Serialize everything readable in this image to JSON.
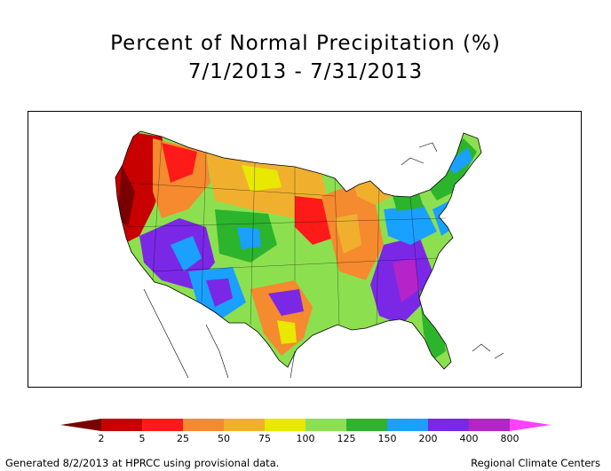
{
  "title": "Percent of Normal Precipitation (%)",
  "period": "7/1/2013 - 7/31/2013",
  "legend": {
    "ticks": [
      "2",
      "5",
      "25",
      "50",
      "75",
      "100",
      "125",
      "150",
      "200",
      "400",
      "800"
    ],
    "colors": {
      "lt2": "#7a0000",
      "2-5": "#c80000",
      "5-25": "#ff1a1a",
      "25-50": "#f58a2e",
      "50-75": "#f0b02e",
      "75-100": "#e8e800",
      "100-125": "#8ce050",
      "125-150": "#2db42d",
      "150-200": "#1aa0ff",
      "200-400": "#7a28e6",
      "400-800": "#b424c8",
      "gt800": "#ff40ff"
    }
  },
  "footer": {
    "left": "Generated 8/2/2013 at HPRCC using provisional data.",
    "right": "Regional Climate Centers"
  }
}
